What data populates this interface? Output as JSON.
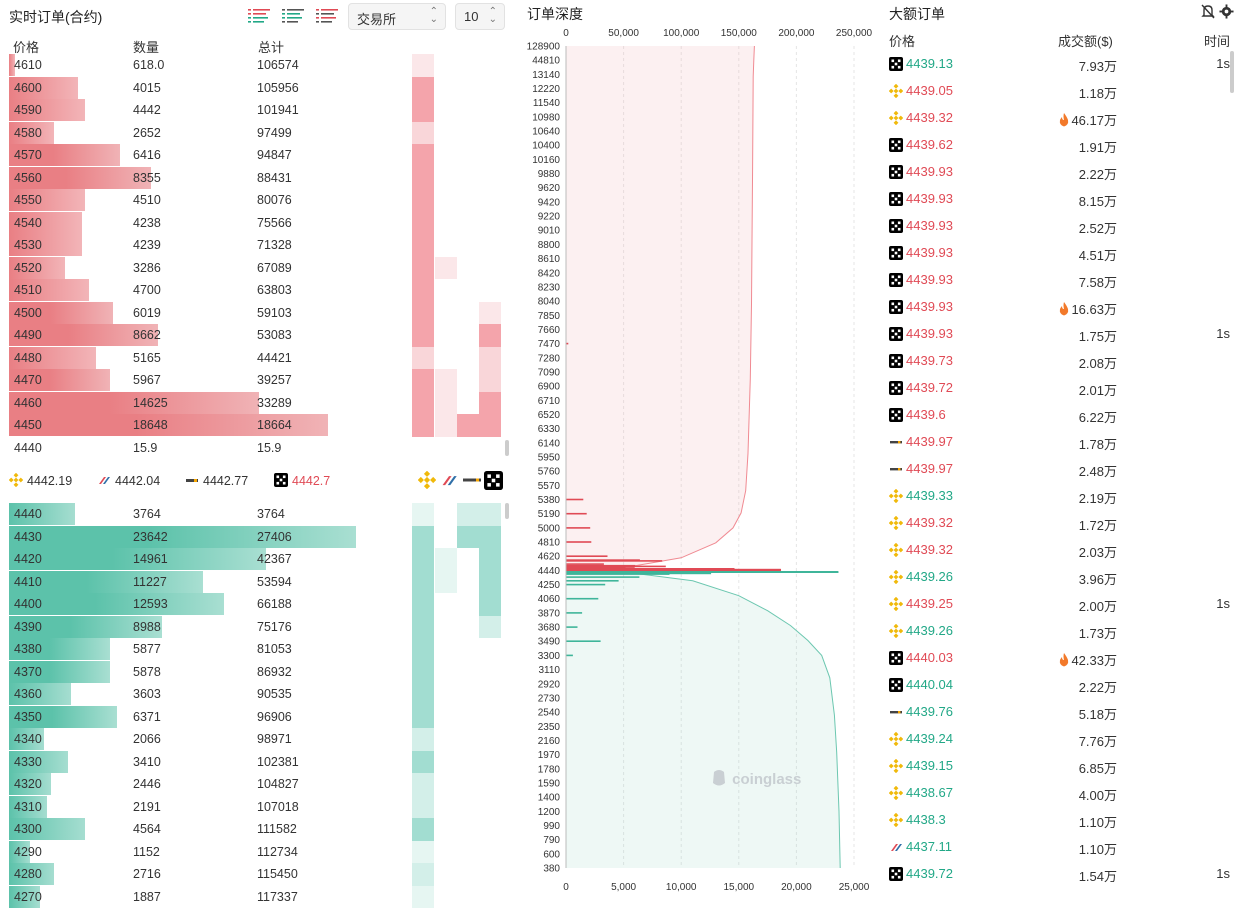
{
  "orderbook": {
    "title": "实时订单(合约)",
    "exchange_select": "交易所",
    "depth_select": "10",
    "headers": {
      "price": "价格",
      "qty": "数量",
      "total": "总计"
    },
    "asks": [
      {
        "p": "4610",
        "q": "618.0",
        "t": "106574",
        "bar": 0.01,
        "h": [
          0.15,
          0,
          0,
          0
        ]
      },
      {
        "p": "4600",
        "q": "4015",
        "t": "105956",
        "bar": 0.2,
        "h": [
          1,
          0,
          0,
          0
        ]
      },
      {
        "p": "4590",
        "q": "4442",
        "t": "101941",
        "bar": 0.22,
        "h": [
          1,
          0,
          0,
          0
        ]
      },
      {
        "p": "4580",
        "q": "2652",
        "t": "97499",
        "bar": 0.13,
        "h": [
          0.4,
          0,
          0,
          0
        ]
      },
      {
        "p": "4570",
        "q": "6416",
        "t": "94847",
        "bar": 0.32,
        "h": [
          1,
          0,
          0,
          0
        ]
      },
      {
        "p": "4560",
        "q": "8355",
        "t": "88431",
        "bar": 0.41,
        "h": [
          1,
          0,
          0,
          0
        ]
      },
      {
        "p": "4550",
        "q": "4510",
        "t": "80076",
        "bar": 0.22,
        "h": [
          1,
          0,
          0,
          0
        ]
      },
      {
        "p": "4540",
        "q": "4238",
        "t": "75566",
        "bar": 0.21,
        "h": [
          1,
          0,
          0,
          0
        ]
      },
      {
        "p": "4530",
        "q": "4239",
        "t": "71328",
        "bar": 0.21,
        "h": [
          1,
          0,
          0,
          0
        ]
      },
      {
        "p": "4520",
        "q": "3286",
        "t": "67089",
        "bar": 0.16,
        "h": [
          1,
          0.1,
          0,
          0
        ]
      },
      {
        "p": "4510",
        "q": "4700",
        "t": "63803",
        "bar": 0.23,
        "h": [
          1,
          0,
          0,
          0
        ]
      },
      {
        "p": "4500",
        "q": "6019",
        "t": "59103",
        "bar": 0.3,
        "h": [
          1,
          0,
          0,
          0.15
        ]
      },
      {
        "p": "4490",
        "q": "8662",
        "t": "53083",
        "bar": 0.43,
        "h": [
          1,
          0,
          0,
          1
        ]
      },
      {
        "p": "4480",
        "q": "5165",
        "t": "44421",
        "bar": 0.25,
        "h": [
          0.3,
          0,
          0,
          0.3
        ]
      },
      {
        "p": "4470",
        "q": "5967",
        "t": "39257",
        "bar": 0.29,
        "h": [
          1,
          0.1,
          0,
          0.3
        ]
      },
      {
        "p": "4460",
        "q": "14625",
        "t": "33289",
        "bar": 0.72,
        "h": [
          1,
          0.2,
          0,
          1
        ]
      },
      {
        "p": "4450",
        "q": "18648",
        "t": "18664",
        "bar": 0.92,
        "h": [
          1,
          0.2,
          1,
          1
        ]
      },
      {
        "p": "4440",
        "q": "15.9",
        "t": "15.9",
        "bar": 0,
        "h": [
          0,
          0,
          0,
          0
        ]
      }
    ],
    "mid_prices": [
      {
        "logo": "binance",
        "price": "4442.19"
      },
      {
        "logo": "bitget",
        "price": "4442.04"
      },
      {
        "logo": "bybit",
        "price": "4442.77"
      },
      {
        "logo": "okx",
        "price": "4442.7"
      }
    ],
    "bids": [
      {
        "p": "4440",
        "q": "3764",
        "t": "3764",
        "bar": 0.19,
        "h": [
          0.05,
          0,
          0.3,
          0.3
        ]
      },
      {
        "p": "4430",
        "q": "23642",
        "t": "27406",
        "bar": 1.0,
        "h": [
          1,
          0,
          1,
          1
        ]
      },
      {
        "p": "4420",
        "q": "14961",
        "t": "42367",
        "bar": 0.74,
        "h": [
          1,
          0.1,
          0,
          1
        ]
      },
      {
        "p": "4410",
        "q": "11227",
        "t": "53594",
        "bar": 0.56,
        "h": [
          1,
          0.1,
          0,
          1
        ]
      },
      {
        "p": "4400",
        "q": "12593",
        "t": "66188",
        "bar": 0.62,
        "h": [
          1,
          0,
          0,
          1
        ]
      },
      {
        "p": "4390",
        "q": "8988",
        "t": "75176",
        "bar": 0.44,
        "h": [
          1,
          0,
          0,
          0.3
        ]
      },
      {
        "p": "4380",
        "q": "5877",
        "t": "81053",
        "bar": 0.29,
        "h": [
          1,
          0,
          0,
          0
        ]
      },
      {
        "p": "4370",
        "q": "5878",
        "t": "86932",
        "bar": 0.29,
        "h": [
          1,
          0,
          0,
          0
        ]
      },
      {
        "p": "4360",
        "q": "3603",
        "t": "90535",
        "bar": 0.18,
        "h": [
          1,
          0,
          0,
          0
        ]
      },
      {
        "p": "4350",
        "q": "6371",
        "t": "96906",
        "bar": 0.31,
        "h": [
          1,
          0,
          0,
          0
        ]
      },
      {
        "p": "4340",
        "q": "2066",
        "t": "98971",
        "bar": 0.1,
        "h": [
          0.3,
          0,
          0,
          0
        ]
      },
      {
        "p": "4330",
        "q": "3410",
        "t": "102381",
        "bar": 0.17,
        "h": [
          1,
          0,
          0,
          0
        ]
      },
      {
        "p": "4320",
        "q": "2446",
        "t": "104827",
        "bar": 0.12,
        "h": [
          0.3,
          0,
          0,
          0
        ]
      },
      {
        "p": "4310",
        "q": "2191",
        "t": "107018",
        "bar": 0.11,
        "h": [
          0.3,
          0,
          0,
          0
        ]
      },
      {
        "p": "4300",
        "q": "4564",
        "t": "111582",
        "bar": 0.22,
        "h": [
          1,
          0,
          0,
          0
        ]
      },
      {
        "p": "4290",
        "q": "1152",
        "t": "112734",
        "bar": 0.06,
        "h": [
          0.2,
          0,
          0,
          0
        ]
      },
      {
        "p": "4280",
        "q": "2716",
        "t": "115450",
        "bar": 0.13,
        "h": [
          0.3,
          0,
          0,
          0
        ]
      },
      {
        "p": "4270",
        "q": "1887",
        "t": "117337",
        "bar": 0.09,
        "h": [
          0.2,
          0,
          0,
          0
        ]
      }
    ]
  },
  "depth": {
    "title": "订单深度",
    "watermark": "coinglass"
  },
  "chart_data": {
    "type": "bar",
    "title": "订单深度",
    "orientation": "horizontal",
    "x_axis_top": [
      "0",
      "50,000",
      "100,000",
      "150,000",
      "200,000",
      "250,000"
    ],
    "x_axis_top_range": [
      0,
      250000
    ],
    "x_axis_bottom": [
      "0",
      "5,000",
      "10,000",
      "15,000",
      "20,000",
      "25,000"
    ],
    "x_axis_bottom_range": [
      0,
      25000
    ],
    "y_labels": [
      "128900",
      "44810",
      "13140",
      "12220",
      "11540",
      "10980",
      "10640",
      "10400",
      "10160",
      "9880",
      "9620",
      "9420",
      "9220",
      "9010",
      "8800",
      "8610",
      "8420",
      "8230",
      "8040",
      "7850",
      "7660",
      "7470",
      "7280",
      "7090",
      "6900",
      "6710",
      "6520",
      "6330",
      "6140",
      "5950",
      "5760",
      "5570",
      "5380",
      "5190",
      "5000",
      "4810",
      "4620",
      "4440",
      "4250",
      "4060",
      "3870",
      "3680",
      "3490",
      "3300",
      "3110",
      "2920",
      "2730",
      "2540",
      "2350",
      "2160",
      "1970",
      "1780",
      "1590",
      "1400",
      "1200",
      "990",
      "790",
      "600",
      "380"
    ],
    "mid_price": 4440,
    "series": [
      {
        "name": "asks_cumulative",
        "color": "#e04a55",
        "values": [
          [
            4440,
            0
          ],
          [
            4460,
            30000
          ],
          [
            4500,
            60000
          ],
          [
            4600,
            100000
          ],
          [
            4800,
            130000
          ],
          [
            5000,
            145000
          ],
          [
            5200,
            152000
          ],
          [
            5500,
            156000
          ],
          [
            6000,
            158000
          ],
          [
            7000,
            160000
          ],
          [
            8000,
            161000
          ],
          [
            10000,
            162000
          ],
          [
            13000,
            162500
          ],
          [
            44810,
            163000
          ],
          [
            128900,
            163500
          ]
        ]
      },
      {
        "name": "bids_cumulative",
        "color": "#3fb59a",
        "values": [
          [
            4440,
            0
          ],
          [
            4400,
            60000
          ],
          [
            4300,
            110000
          ],
          [
            4100,
            150000
          ],
          [
            3900,
            175000
          ],
          [
            3700,
            195000
          ],
          [
            3500,
            210000
          ],
          [
            3300,
            222000
          ],
          [
            3000,
            229000
          ],
          [
            2500,
            233000
          ],
          [
            2000,
            235000
          ],
          [
            1200,
            237000
          ],
          [
            380,
            238000
          ]
        ]
      },
      {
        "name": "asks_volume",
        "color": "#e04a55",
        "values": [
          [
            4440,
            18600
          ],
          [
            4450,
            18648
          ],
          [
            4460,
            14625
          ],
          [
            4470,
            5967
          ],
          [
            4480,
            5165
          ],
          [
            4490,
            8662
          ],
          [
            4500,
            6019
          ],
          [
            4520,
            3286
          ],
          [
            4560,
            8355
          ],
          [
            4570,
            6416
          ],
          [
            4620,
            3600
          ],
          [
            4810,
            2200
          ],
          [
            5000,
            2100
          ],
          [
            5190,
            1800
          ],
          [
            5380,
            1500
          ],
          [
            7470,
            200
          ]
        ]
      },
      {
        "name": "bids_volume",
        "color": "#3fb59a",
        "values": [
          [
            4440,
            3764
          ],
          [
            4430,
            23642
          ],
          [
            4420,
            14961
          ],
          [
            4410,
            11227
          ],
          [
            4400,
            12593
          ],
          [
            4390,
            8988
          ],
          [
            4350,
            6371
          ],
          [
            4300,
            4564
          ],
          [
            4250,
            3400
          ],
          [
            4060,
            2800
          ],
          [
            3870,
            1400
          ],
          [
            3680,
            1000
          ],
          [
            3490,
            3000
          ],
          [
            3300,
            600
          ]
        ]
      }
    ]
  },
  "trades": {
    "title": "大额订单",
    "headers": {
      "price": "价格",
      "amount": "成交额($)",
      "time": "时间"
    },
    "rows": [
      {
        "logo": "okx",
        "price": "4439.13",
        "dir": "up",
        "amount": "7.93万",
        "fire": false,
        "time": "1s"
      },
      {
        "logo": "binance",
        "price": "4439.05",
        "dir": "dn",
        "amount": "1.18万",
        "fire": false,
        "time": ""
      },
      {
        "logo": "binance",
        "price": "4439.32",
        "dir": "dn",
        "amount": "46.17万",
        "fire": true,
        "time": ""
      },
      {
        "logo": "okx",
        "price": "4439.62",
        "dir": "dn",
        "amount": "1.91万",
        "fire": false,
        "time": ""
      },
      {
        "logo": "okx",
        "price": "4439.93",
        "dir": "dn",
        "amount": "2.22万",
        "fire": false,
        "time": ""
      },
      {
        "logo": "okx",
        "price": "4439.93",
        "dir": "dn",
        "amount": "8.15万",
        "fire": false,
        "time": ""
      },
      {
        "logo": "okx",
        "price": "4439.93",
        "dir": "dn",
        "amount": "2.52万",
        "fire": false,
        "time": ""
      },
      {
        "logo": "okx",
        "price": "4439.93",
        "dir": "dn",
        "amount": "4.51万",
        "fire": false,
        "time": ""
      },
      {
        "logo": "okx",
        "price": "4439.93",
        "dir": "dn",
        "amount": "7.58万",
        "fire": false,
        "time": ""
      },
      {
        "logo": "okx",
        "price": "4439.93",
        "dir": "dn",
        "amount": "16.63万",
        "fire": true,
        "time": ""
      },
      {
        "logo": "okx",
        "price": "4439.93",
        "dir": "dn",
        "amount": "1.75万",
        "fire": false,
        "time": "1s"
      },
      {
        "logo": "okx",
        "price": "4439.73",
        "dir": "dn",
        "amount": "2.08万",
        "fire": false,
        "time": ""
      },
      {
        "logo": "okx",
        "price": "4439.72",
        "dir": "dn",
        "amount": "2.01万",
        "fire": false,
        "time": ""
      },
      {
        "logo": "okx",
        "price": "4439.6",
        "dir": "dn",
        "amount": "6.22万",
        "fire": false,
        "time": ""
      },
      {
        "logo": "bybit",
        "price": "4439.97",
        "dir": "dn",
        "amount": "1.78万",
        "fire": false,
        "time": ""
      },
      {
        "logo": "bybit",
        "price": "4439.97",
        "dir": "dn",
        "amount": "2.48万",
        "fire": false,
        "time": ""
      },
      {
        "logo": "binance",
        "price": "4439.33",
        "dir": "up",
        "amount": "2.19万",
        "fire": false,
        "time": ""
      },
      {
        "logo": "binance",
        "price": "4439.32",
        "dir": "dn",
        "amount": "1.72万",
        "fire": false,
        "time": ""
      },
      {
        "logo": "binance",
        "price": "4439.32",
        "dir": "dn",
        "amount": "2.03万",
        "fire": false,
        "time": ""
      },
      {
        "logo": "binance",
        "price": "4439.26",
        "dir": "up",
        "amount": "3.96万",
        "fire": false,
        "time": ""
      },
      {
        "logo": "binance",
        "price": "4439.25",
        "dir": "dn",
        "amount": "2.00万",
        "fire": false,
        "time": "1s"
      },
      {
        "logo": "binance",
        "price": "4439.26",
        "dir": "up",
        "amount": "1.73万",
        "fire": false,
        "time": ""
      },
      {
        "logo": "okx",
        "price": "4440.03",
        "dir": "dn",
        "amount": "42.33万",
        "fire": true,
        "time": ""
      },
      {
        "logo": "okx",
        "price": "4440.04",
        "dir": "up",
        "amount": "2.22万",
        "fire": false,
        "time": ""
      },
      {
        "logo": "bybit",
        "price": "4439.76",
        "dir": "up",
        "amount": "5.18万",
        "fire": false,
        "time": ""
      },
      {
        "logo": "binance",
        "price": "4439.24",
        "dir": "up",
        "amount": "7.76万",
        "fire": false,
        "time": ""
      },
      {
        "logo": "binance",
        "price": "4439.15",
        "dir": "up",
        "amount": "6.85万",
        "fire": false,
        "time": ""
      },
      {
        "logo": "binance",
        "price": "4438.67",
        "dir": "up",
        "amount": "4.00万",
        "fire": false,
        "time": ""
      },
      {
        "logo": "binance",
        "price": "4438.3",
        "dir": "up",
        "amount": "1.10万",
        "fire": false,
        "time": ""
      },
      {
        "logo": "bitget",
        "price": "4437.11",
        "dir": "up",
        "amount": "1.10万",
        "fire": false,
        "time": ""
      },
      {
        "logo": "okx",
        "price": "4439.72",
        "dir": "up",
        "amount": "1.54万",
        "fire": false,
        "time": "1s"
      }
    ]
  },
  "colors": {
    "ask": "#e04a55",
    "bid": "#22a887",
    "ask_bar": "#e97f84",
    "bid_bar": "#5cc2aa"
  }
}
